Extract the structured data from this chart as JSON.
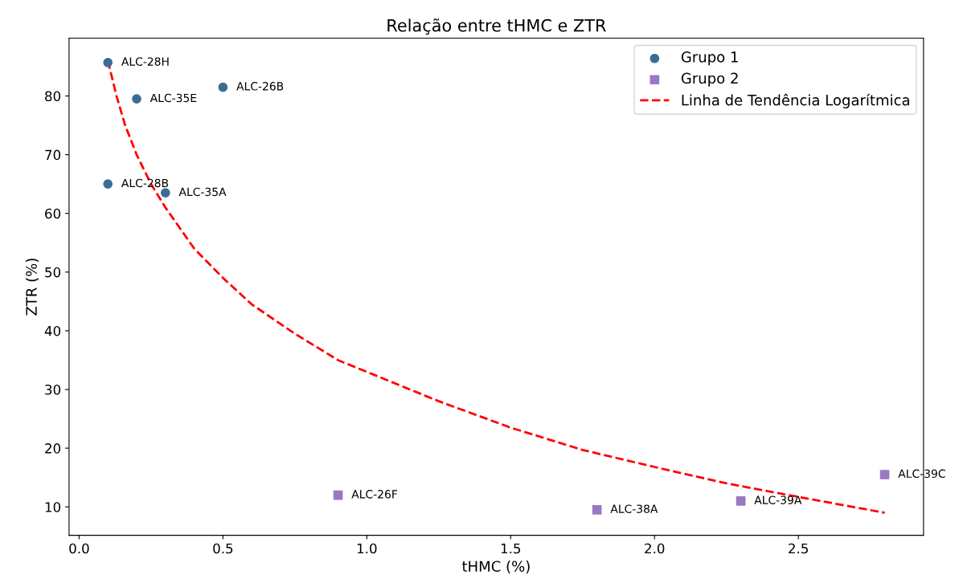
{
  "chart_data": {
    "type": "scatter",
    "title": "Relação entre tHMC e ZTR",
    "xlabel": "tHMC (%)",
    "ylabel": "ZTR (%)",
    "xlim": [
      -0.035,
      2.935
    ],
    "xticks": [
      {
        "value": 0,
        "label": "0.0"
      },
      0.5,
      {
        "value": 1,
        "label": "1.0"
      },
      1.5,
      {
        "value": 2,
        "label": "2.0"
      },
      2.5
    ],
    "ylim": [
      5.15,
      89.85
    ],
    "yticks": [
      10,
      20,
      30,
      40,
      50,
      60,
      70,
      80
    ],
    "grid": false,
    "legend": "top right",
    "series": [
      {
        "name": "Grupo 1",
        "marker": "circle",
        "color": "#3a6d94",
        "x": [
          0.1,
          0.2,
          0.5,
          0.1,
          0.3
        ],
        "values": [
          85.7,
          79.5,
          81.5,
          65,
          63.5
        ]
      },
      {
        "name": "Grupo 2",
        "marker": "square",
        "color": "#9a78c2",
        "x": [
          0.9,
          1.8,
          2.3,
          2.8
        ],
        "values": [
          12,
          9.5,
          11,
          15.5
        ]
      },
      {
        "name": "Linha de Tendência Logarítmica",
        "type": "line",
        "marker": "none",
        "line_style": "dashed",
        "color": "#ff0000",
        "x": [
          0.1,
          0.13,
          0.16,
          0.2,
          0.25,
          0.3,
          0.4,
          0.5,
          0.6,
          0.75,
          0.9,
          1.0,
          1.25,
          1.5,
          1.75,
          2.0,
          2.25,
          2.5,
          2.8
        ],
        "values": [
          86,
          80,
          75,
          70,
          65,
          61,
          54,
          49,
          44.5,
          39.5,
          35,
          33,
          28,
          23.5,
          19.7,
          16.8,
          14,
          11.7,
          9
        ]
      }
    ],
    "annotations": [
      {
        "text": "ALC-28H",
        "x": 0.1,
        "y": 85.7
      },
      {
        "text": "ALC-35E",
        "x": 0.2,
        "y": 79.5
      },
      {
        "text": "ALC-26B",
        "x": 0.5,
        "y": 81.5
      },
      {
        "text": "ALC-28B",
        "x": 0.1,
        "y": 65
      },
      {
        "text": "ALC-35A",
        "x": 0.3,
        "y": 63.5
      },
      {
        "text": "ALC-26F",
        "x": 0.9,
        "y": 12
      },
      {
        "text": "ALC-38A",
        "x": 1.8,
        "y": 9.5
      },
      {
        "text": "ALC-39A",
        "x": 2.3,
        "y": 11
      },
      {
        "text": "ALC-39C",
        "x": 2.8,
        "y": 15.5
      }
    ]
  }
}
